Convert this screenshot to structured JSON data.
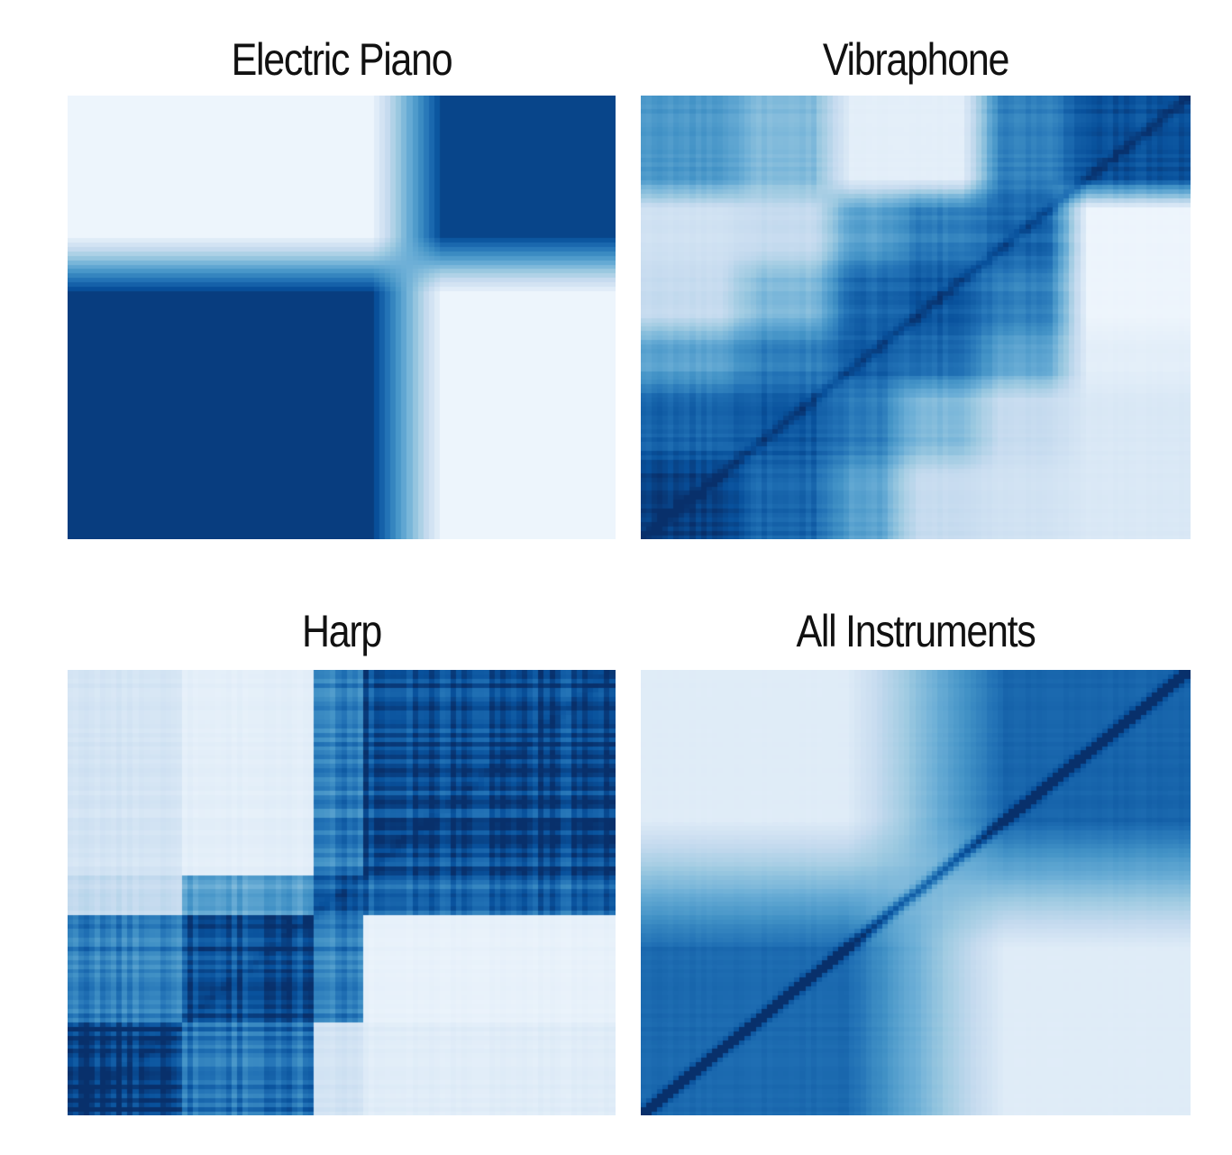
{
  "chart_data": [
    {
      "type": "heatmap",
      "title": "Electric Piano",
      "xlabel": "",
      "ylabel": "",
      "colormap": "Blues",
      "grid": false,
      "legend": "none",
      "grid_size": 100,
      "segments": [
        0,
        0.62,
        1.0
      ],
      "block_similarity": [
        [
          0.95,
          0.05
        ],
        [
          0.05,
          0.92
        ]
      ],
      "smoothing": 0.06,
      "diagonal_boost": 0.0,
      "stripe_noise": 0.0,
      "row_order": "bottom-to-top"
    },
    {
      "type": "heatmap",
      "title": "Vibraphone",
      "xlabel": "",
      "ylabel": "",
      "colormap": "Blues",
      "grid": false,
      "legend": "none",
      "grid_size": 100,
      "segments": [
        0,
        0.18,
        0.35,
        0.47,
        0.62,
        0.78,
        1.0
      ],
      "block_similarity": [
        [
          0.95,
          0.8,
          0.55,
          0.25,
          0.2,
          0.15
        ],
        [
          0.8,
          0.85,
          0.7,
          0.45,
          0.25,
          0.15
        ],
        [
          0.55,
          0.7,
          0.82,
          0.78,
          0.55,
          0.1
        ],
        [
          0.25,
          0.45,
          0.78,
          0.85,
          0.7,
          0.05
        ],
        [
          0.2,
          0.25,
          0.55,
          0.7,
          0.8,
          0.05
        ],
        [
          0.6,
          0.45,
          0.1,
          0.1,
          0.7,
          0.88
        ]
      ],
      "smoothing": 0.03,
      "diagonal_boost": 0.12,
      "stripe_noise": 0.08,
      "row_order": "bottom-to-top"
    },
    {
      "type": "heatmap",
      "title": "Harp",
      "xlabel": "",
      "ylabel": "",
      "colormap": "Blues",
      "grid": false,
      "legend": "none",
      "grid_size": 100,
      "segments": [
        0,
        0.21,
        0.45,
        0.54,
        1.0
      ],
      "block_similarity": [
        [
          0.98,
          0.75,
          0.2,
          0.12
        ],
        [
          0.7,
          0.9,
          0.72,
          0.08
        ],
        [
          0.25,
          0.55,
          0.85,
          0.8
        ],
        [
          0.18,
          0.1,
          0.72,
          0.92
        ]
      ],
      "smoothing": 0.0,
      "diagonal_boost": 0.05,
      "stripe_noise": 0.22,
      "row_order": "bottom-to-top"
    },
    {
      "type": "heatmap",
      "title": "All Instruments",
      "xlabel": "",
      "ylabel": "",
      "colormap": "Blues",
      "grid": false,
      "legend": "none",
      "grid_size": 100,
      "segments": [
        0,
        0.52,
        1.0
      ],
      "block_similarity": [
        [
          0.78,
          0.12
        ],
        [
          0.12,
          0.8
        ]
      ],
      "smoothing": 0.14,
      "diagonal_boost": 0.35,
      "stripe_noise": 0.03,
      "row_order": "bottom-to-top"
    }
  ]
}
